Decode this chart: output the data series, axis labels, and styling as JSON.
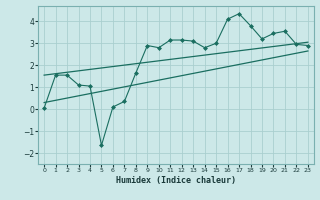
{
  "title": "",
  "xlabel": "Humidex (Indice chaleur)",
  "ylabel": "",
  "background_color": "#cce8e8",
  "grid_color": "#aacfcf",
  "line_color": "#1a6e60",
  "xlim": [
    -0.5,
    23.5
  ],
  "ylim": [
    -2.5,
    4.7
  ],
  "xticks": [
    0,
    1,
    2,
    3,
    4,
    5,
    6,
    7,
    8,
    9,
    10,
    11,
    12,
    13,
    14,
    15,
    16,
    17,
    18,
    19,
    20,
    21,
    22,
    23
  ],
  "yticks": [
    -2,
    -1,
    0,
    1,
    2,
    3,
    4
  ],
  "series1_x": [
    0,
    1,
    2,
    3,
    4,
    5,
    6,
    7,
    8,
    9,
    10,
    11,
    12,
    13,
    14,
    15,
    16,
    17,
    18,
    19,
    20,
    21,
    22,
    23
  ],
  "series1_y": [
    0.05,
    1.55,
    1.55,
    1.1,
    1.05,
    -1.65,
    0.1,
    0.35,
    1.65,
    2.9,
    2.8,
    3.15,
    3.15,
    3.1,
    2.8,
    3.0,
    4.1,
    4.35,
    3.8,
    3.2,
    3.45,
    3.55,
    2.95,
    2.9
  ],
  "series2_x": [
    0,
    23
  ],
  "series2_y": [
    0.3,
    2.65
  ],
  "series3_x": [
    0,
    23
  ],
  "series3_y": [
    1.55,
    3.05
  ]
}
